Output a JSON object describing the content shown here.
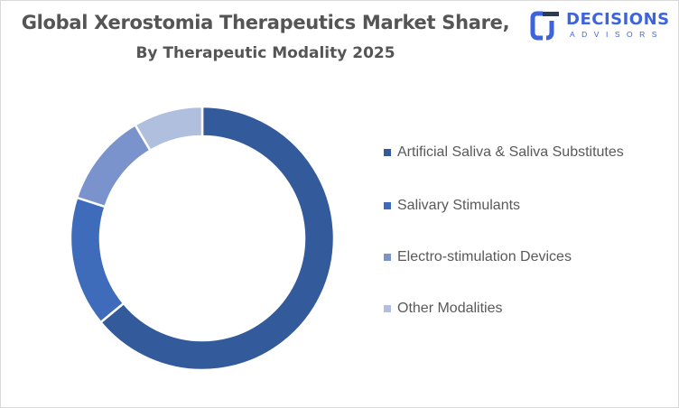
{
  "header": {
    "title_line1": "Global Xerostomia Therapeutics Market Share,",
    "title_line2": "By Therapeutic Modality 2025"
  },
  "logo": {
    "name": "DECISIONS",
    "subtitle": "ADVISORS",
    "color": "#3d63dd"
  },
  "chart_data": {
    "type": "pie",
    "subtype": "donut",
    "title": "Global Xerostomia Therapeutics Market Share, By Therapeutic Modality 2025",
    "categories": [
      "Artificial Saliva & Saliva Substitutes",
      "Salivary Stimulants",
      "Electro-stimulation Devices",
      "Other Modalities"
    ],
    "values": [
      64,
      16,
      11.5,
      8.5
    ],
    "colors": [
      "#335a9a",
      "#3f6cba",
      "#7b93cd",
      "#b1bfdf"
    ],
    "legend_position": "right",
    "data_labels": false
  },
  "legend": {
    "items": [
      {
        "label": "Artificial Saliva & Saliva Substitutes",
        "color": "#335a9a"
      },
      {
        "label": "Salivary Stimulants",
        "color": "#3f6cba"
      },
      {
        "label": "Electro-stimulation Devices",
        "color": "#7b93cd"
      },
      {
        "label": "Other Modalities",
        "color": "#b1bfdf"
      }
    ]
  }
}
